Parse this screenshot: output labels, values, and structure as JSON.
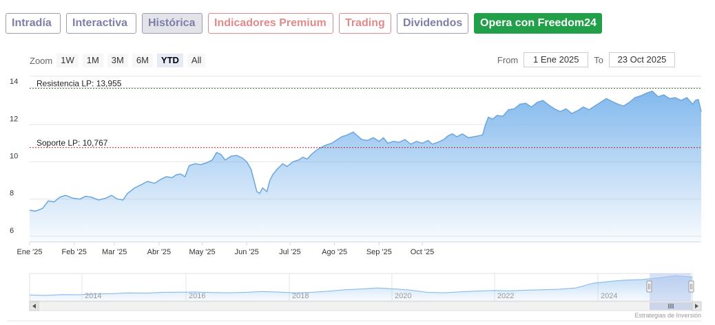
{
  "tabs": [
    {
      "label": "Intradía",
      "style": "normal"
    },
    {
      "label": "Interactiva",
      "style": "normal"
    },
    {
      "label": "Histórica",
      "style": "active"
    },
    {
      "label": "Indicadores Premium",
      "style": "premium"
    },
    {
      "label": "Trading",
      "style": "premium"
    },
    {
      "label": "Dividendos",
      "style": "normal"
    },
    {
      "label": "Opera con Freedom24",
      "style": "cta"
    }
  ],
  "zoom": {
    "label": "Zoom",
    "buttons": [
      "1W",
      "1M",
      "3M",
      "6M",
      "YTD",
      "All"
    ],
    "selected": "YTD"
  },
  "range": {
    "from_label": "From",
    "from_value": "1 Ene 2025",
    "to_label": "To",
    "to_value": "23 Oct 2025"
  },
  "chart_data": {
    "type": "area",
    "x_labels": [
      "Ene '25",
      "Feb '25",
      "Mar '25",
      "Abr '25",
      "May '25",
      "Jun '25",
      "Jul '25",
      "Ago '25",
      "Sep '25",
      "Oct '25"
    ],
    "y_ticks": [
      6,
      8,
      10,
      12,
      14
    ],
    "ylim": [
      5.7,
      14.6
    ],
    "grid": true,
    "series": [
      {
        "values": [
          [
            1,
            7.4
          ],
          [
            5,
            7.35
          ],
          [
            10,
            7.5
          ],
          [
            14,
            7.9
          ],
          [
            18,
            7.85
          ],
          [
            22,
            8.1
          ],
          [
            26,
            8.2
          ],
          [
            31,
            8.05
          ],
          [
            36,
            8.0
          ],
          [
            40,
            8.15
          ],
          [
            44,
            8.1
          ],
          [
            49,
            7.95
          ],
          [
            54,
            8.05
          ],
          [
            58,
            8.2
          ],
          [
            62,
            8.0
          ],
          [
            66,
            7.95
          ],
          [
            69,
            8.3
          ],
          [
            74,
            8.6
          ],
          [
            78,
            8.75
          ],
          [
            83,
            8.95
          ],
          [
            88,
            8.85
          ],
          [
            92,
            9.05
          ],
          [
            96,
            9.2
          ],
          [
            100,
            9.15
          ],
          [
            103,
            9.3
          ],
          [
            106,
            9.35
          ],
          [
            109,
            9.2
          ],
          [
            112,
            9.8
          ],
          [
            116,
            9.9
          ],
          [
            120,
            9.85
          ],
          [
            124,
            9.95
          ],
          [
            128,
            10.1
          ],
          [
            131,
            10.5
          ],
          [
            134,
            10.4
          ],
          [
            137,
            10.1
          ],
          [
            141,
            10.3
          ],
          [
            145,
            10.35
          ],
          [
            149,
            10.2
          ],
          [
            152,
            10.0
          ],
          [
            155,
            9.6
          ],
          [
            157,
            9.0
          ],
          [
            159,
            8.4
          ],
          [
            161,
            8.3
          ],
          [
            163,
            8.6
          ],
          [
            166,
            8.4
          ],
          [
            168,
            9.0
          ],
          [
            170,
            9.3
          ],
          [
            173,
            9.6
          ],
          [
            177,
            9.9
          ],
          [
            180,
            9.75
          ],
          [
            184,
            10.0
          ],
          [
            188,
            10.1
          ],
          [
            191,
            10.25
          ],
          [
            194,
            10.15
          ],
          [
            197,
            10.4
          ],
          [
            200,
            10.6
          ],
          [
            203,
            10.75
          ],
          [
            207,
            10.9
          ],
          [
            211,
            11.0
          ],
          [
            215,
            11.2
          ],
          [
            218,
            11.35
          ],
          [
            222,
            11.45
          ],
          [
            226,
            11.6
          ],
          [
            229,
            11.4
          ],
          [
            232,
            11.2
          ],
          [
            236,
            11.15
          ],
          [
            240,
            11.3
          ],
          [
            244,
            11.1
          ],
          [
            247,
            11.3
          ],
          [
            250,
            11.0
          ],
          [
            254,
            11.1
          ],
          [
            258,
            11.05
          ],
          [
            262,
            11.2
          ],
          [
            266,
            10.95
          ],
          [
            270,
            11.1
          ],
          [
            274,
            11.0
          ],
          [
            278,
            11.15
          ],
          [
            281,
            10.95
          ],
          [
            285,
            11.05
          ],
          [
            289,
            11.2
          ],
          [
            292,
            11.4
          ],
          [
            295,
            11.5
          ],
          [
            298,
            11.35
          ],
          [
            302,
            11.5
          ],
          [
            306,
            11.3
          ],
          [
            310,
            11.35
          ],
          [
            313,
            11.4
          ],
          [
            316,
            11.45
          ],
          [
            318,
            12.0
          ],
          [
            320,
            12.4
          ],
          [
            323,
            12.3
          ],
          [
            326,
            12.5
          ],
          [
            330,
            12.45
          ],
          [
            334,
            12.8
          ],
          [
            338,
            12.85
          ],
          [
            342,
            13.1
          ],
          [
            346,
            13.15
          ],
          [
            350,
            12.95
          ],
          [
            354,
            13.2
          ],
          [
            358,
            13.3
          ],
          [
            362,
            13.05
          ],
          [
            366,
            12.85
          ],
          [
            370,
            12.7
          ],
          [
            374,
            12.85
          ],
          [
            378,
            12.6
          ],
          [
            382,
            12.75
          ],
          [
            386,
            12.95
          ],
          [
            390,
            12.8
          ],
          [
            394,
            13.0
          ],
          [
            398,
            13.2
          ],
          [
            402,
            13.4
          ],
          [
            406,
            13.25
          ],
          [
            410,
            13.1
          ],
          [
            414,
            13.0
          ],
          [
            418,
            13.2
          ],
          [
            422,
            13.45
          ],
          [
            426,
            13.55
          ],
          [
            430,
            13.7
          ],
          [
            434,
            13.8
          ],
          [
            438,
            13.5
          ],
          [
            442,
            13.6
          ],
          [
            446,
            13.4
          ],
          [
            450,
            13.45
          ],
          [
            454,
            13.3
          ],
          [
            458,
            13.45
          ],
          [
            462,
            13.1
          ],
          [
            464,
            13.3
          ],
          [
            466,
            13.35
          ],
          [
            468,
            12.7
          ]
        ]
      }
    ],
    "plot_lines": [
      {
        "label": "Resistencia LP: 13,955",
        "value": 13.955,
        "color": "#3a7a2a"
      },
      {
        "label": "Soporte LP: 10,767",
        "value": 10.767,
        "color": "#b22222"
      }
    ],
    "navigator": {
      "year_labels": [
        "2014",
        "2016",
        "2018",
        "2020",
        "2022",
        "2024"
      ],
      "series": [
        3.2,
        3.0,
        3.4,
        3.3,
        3.8,
        3.9,
        4.3,
        4.2,
        4.6,
        4.7,
        4.8,
        4.5,
        4.4,
        4.6,
        5.0,
        4.8,
        4.3,
        4.6,
        5.2,
        6.0,
        6.4,
        7.0,
        6.5,
        5.8,
        4.6,
        4.4,
        4.9,
        5.3,
        5.6,
        5.4,
        5.8,
        6.0,
        6.3,
        7.0,
        9.5,
        10.5,
        11.2,
        11.5,
        12.4,
        13.6,
        12.8
      ],
      "ylim": [
        0,
        14
      ]
    },
    "credits": "Estrategias de Inversión"
  },
  "colors": {
    "line": "#6aa6de",
    "area_top": "#7cb5ec",
    "nav_mask": "#b8c8ec"
  }
}
